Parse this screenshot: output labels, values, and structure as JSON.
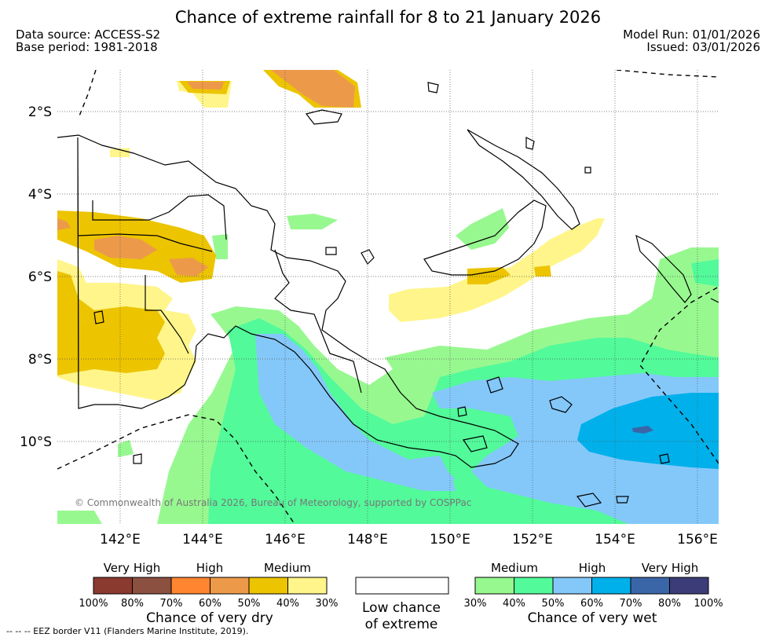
{
  "header": {
    "title": "Chance of extreme rainfall for 8 to 21 January 2026",
    "data_source": "Data source: ACCESS-S2",
    "base_period": "Base period: 1981-2018",
    "model_run": "Model Run: 01/01/2026",
    "issued": "Issued: 03/01/2026"
  },
  "map": {
    "lat_labels": [
      "2°S",
      "4°S",
      "6°S",
      "8°S",
      "10°S"
    ],
    "lon_labels": [
      "142°E",
      "144°E",
      "146°E",
      "148°E",
      "150°E",
      "152°E",
      "154°E",
      "156°E"
    ],
    "copyright": "© Commonwealth of Australia 2026, Bureau of Meteorology, supported by COSPPac"
  },
  "legend": {
    "dry": {
      "categories": [
        "Very High",
        "High",
        "Medium"
      ],
      "colors": [
        "#8b3a30",
        "#8b5040",
        "#ff8530",
        "#ec9a4a",
        "#ecc400",
        "#fff58a"
      ],
      "ticks": [
        "100%",
        "80%",
        "70%",
        "60%",
        "50%",
        "40%",
        "30%"
      ],
      "title": "Chance of very dry"
    },
    "low": {
      "line1": "Low chance",
      "line2": "of extreme"
    },
    "wet": {
      "categories": [
        "Medium",
        "High",
        "Very High"
      ],
      "colors": [
        "#98f890",
        "#52fa9a",
        "#84c8fa",
        "#00b0ea",
        "#3a66a8",
        "#3c3c78"
      ],
      "ticks": [
        "30%",
        "40%",
        "50%",
        "60%",
        "70%",
        "80%",
        "100%"
      ],
      "title": "Chance of very wet"
    }
  },
  "footnote": "--  --  -- EEZ border V11 (Flanders Marine Institute, 2019)."
}
